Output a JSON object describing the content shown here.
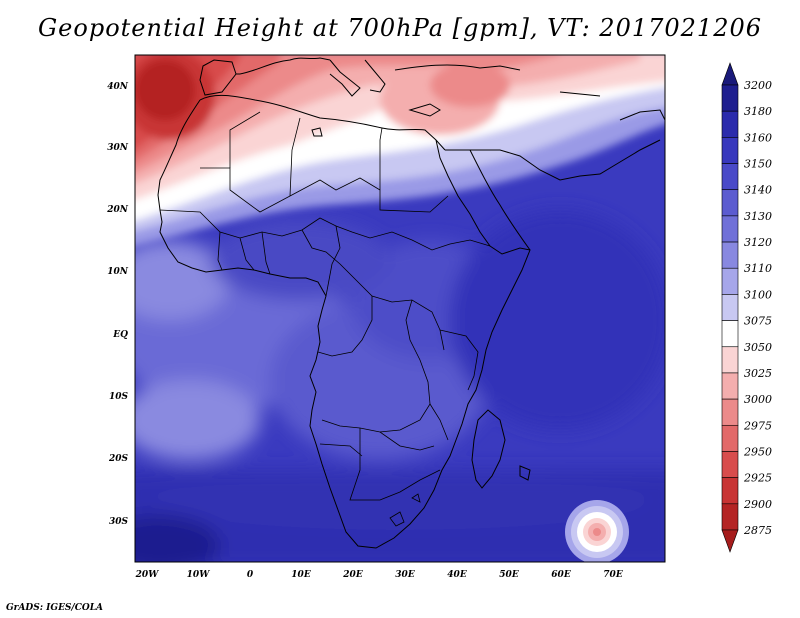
{
  "title": "Geopotential Height at 700hPa [gpm], VT: 2017021206",
  "credit": "GrADS: IGES/COLA",
  "map": {
    "lon_labels": [
      "20W",
      "10W",
      "0",
      "10E",
      "20E",
      "30E",
      "40E",
      "50E",
      "60E",
      "70E"
    ],
    "lat_labels": [
      "40N",
      "30N",
      "20N",
      "10N",
      "EQ",
      "10S",
      "20S",
      "30S"
    ]
  },
  "colorbar": {
    "levels": [
      "3200",
      "3180",
      "3160",
      "3150",
      "3140",
      "3130",
      "3120",
      "3110",
      "3100",
      "3075",
      "3050",
      "3025",
      "3000",
      "2975",
      "2950",
      "2925",
      "2900",
      "2875"
    ],
    "colors": [
      "#1f1f8f",
      "#2b2bac",
      "#3838bd",
      "#4a4ac8",
      "#5c5cd0",
      "#7070d8",
      "#8888e0",
      "#a6a6ea",
      "#c8c8f2",
      "#ffffff",
      "#fad4d4",
      "#f4aeae",
      "#ec8a8a",
      "#e26969",
      "#d84c4c",
      "#c83434",
      "#b42424"
    ],
    "top_color": "#1a1a7a",
    "bottom_color": "#a61c1c"
  }
}
